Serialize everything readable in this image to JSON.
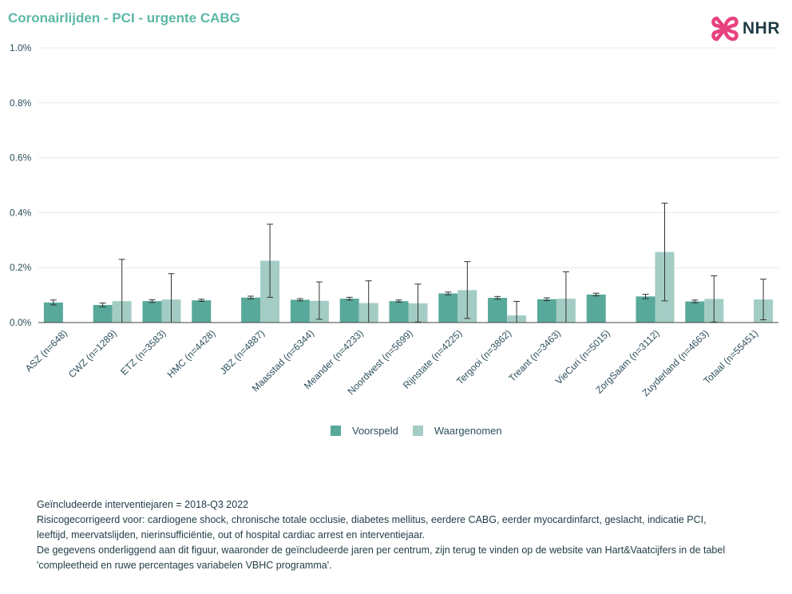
{
  "title": "Coronairlijden - PCI - urgente CABG",
  "logo": {
    "text": "NHR",
    "mark_color": "#e8417f",
    "text_color": "#1f3b44"
  },
  "colors": {
    "voorspeld": "#58a99a",
    "waargenomen": "#a3cdc4",
    "axis_text": "#2d4f5c",
    "grid": "#e8e8e8"
  },
  "legend": {
    "items": [
      "Voorspeld",
      "Waargenomen"
    ],
    "placement": "bottom-center"
  },
  "footnotes": [
    "Geïncludeerde interventiejaren = 2018-Q3 2022",
    "Risicogecorrigeerd voor: cardiogene shock, chronische totale occlusie, diabetes mellitus, eerdere CABG, eerder myocardinfarct, geslacht, indicatie PCI,",
    "leeftijd, meervatslijden, nierinsufficiëntie, out of hospital cardiac arrest en interventiejaar.",
    "De gegevens onderliggend aan dit figuur, waaronder de geïncludeerde jaren per centrum, zijn terug te vinden op de website van Hart&Vaatcijfers in de tabel",
    "'compleetheid en ruwe percentages variabelen VBHC programma'."
  ],
  "chart_data": {
    "type": "bar",
    "ylim": [
      0,
      1.0
    ],
    "yticks": [
      0,
      0.2,
      0.4,
      0.6,
      0.8,
      1.0
    ],
    "ytick_labels": [
      "0.0%",
      "0.2%",
      "0.4%",
      "0.6%",
      "0.8%",
      "1.0%"
    ],
    "grid": true,
    "categories": [
      "ASZ (n=648)",
      "CWZ (n=1289)",
      "ETZ (n=3583)",
      "HMC (n=4428)",
      "JBZ (n=4887)",
      "Maasstad (n=6344)",
      "Meander (n=4233)",
      "Noordwest (n=5699)",
      "Rijnstate (n=4225)",
      "Tergooi (n=3862)",
      "Treant (n=3463)",
      "VieCuri (n=5015)",
      "ZorgSaam (n=3112)",
      "Zuyderland (n=4663)",
      "Totaal (n=55451)"
    ],
    "series": [
      {
        "name": "Voorspeld",
        "values": [
          0.073,
          0.064,
          0.078,
          0.081,
          0.091,
          0.083,
          0.087,
          0.078,
          0.106,
          0.09,
          0.085,
          0.102,
          0.095,
          0.077,
          null
        ],
        "err_low": [
          0.064,
          0.057,
          0.073,
          0.077,
          0.086,
          0.079,
          0.082,
          0.074,
          0.101,
          0.085,
          0.08,
          0.097,
          0.087,
          0.072,
          null
        ],
        "err_high": [
          0.082,
          0.071,
          0.083,
          0.085,
          0.096,
          0.087,
          0.092,
          0.082,
          0.111,
          0.095,
          0.09,
          0.107,
          0.103,
          0.082,
          null
        ]
      },
      {
        "name": "Waargenomen",
        "values": [
          0.0,
          0.078,
          0.084,
          0.0,
          0.225,
          0.079,
          0.071,
          0.07,
          0.118,
          0.026,
          0.087,
          0.0,
          0.257,
          0.086,
          0.084
        ],
        "err_low": [
          0.0,
          0.0,
          0.0,
          0.0,
          0.092,
          0.012,
          0.0,
          0.002,
          0.015,
          0.0,
          0.0,
          0.0,
          0.079,
          0.002,
          0.01
        ],
        "err_high": [
          0.0,
          0.23,
          0.178,
          0.0,
          0.358,
          0.148,
          0.152,
          0.14,
          0.222,
          0.077,
          0.185,
          0.0,
          0.435,
          0.17,
          0.158
        ]
      }
    ]
  }
}
